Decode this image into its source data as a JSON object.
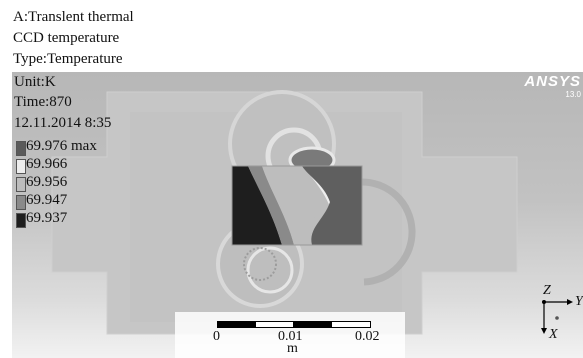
{
  "header": {
    "analysis": "A:Translent thermal",
    "object": "CCD temperature",
    "type": "Type:Temperature"
  },
  "viewport_info": {
    "unit": "Unit:K",
    "time": "Time:870",
    "date": "12.11.2014 8:35"
  },
  "legend": {
    "items": [
      {
        "label": "69.976 max",
        "color": "#5a5a5a"
      },
      {
        "label": "69.966",
        "color": "#ededed"
      },
      {
        "label": "69.956",
        "color": "#bdbdbd"
      },
      {
        "label": "69.947",
        "color": "#8a8a8a"
      },
      {
        "label": "69.937",
        "color": "#1e1e1e"
      }
    ]
  },
  "logo": {
    "main": "ANSYS",
    "version": "13.0"
  },
  "scale": {
    "ticks": [
      "0",
      "0.01",
      "0.02"
    ],
    "unit": "m"
  },
  "triad": {
    "z": "Z",
    "y": "Y",
    "x": "X"
  }
}
